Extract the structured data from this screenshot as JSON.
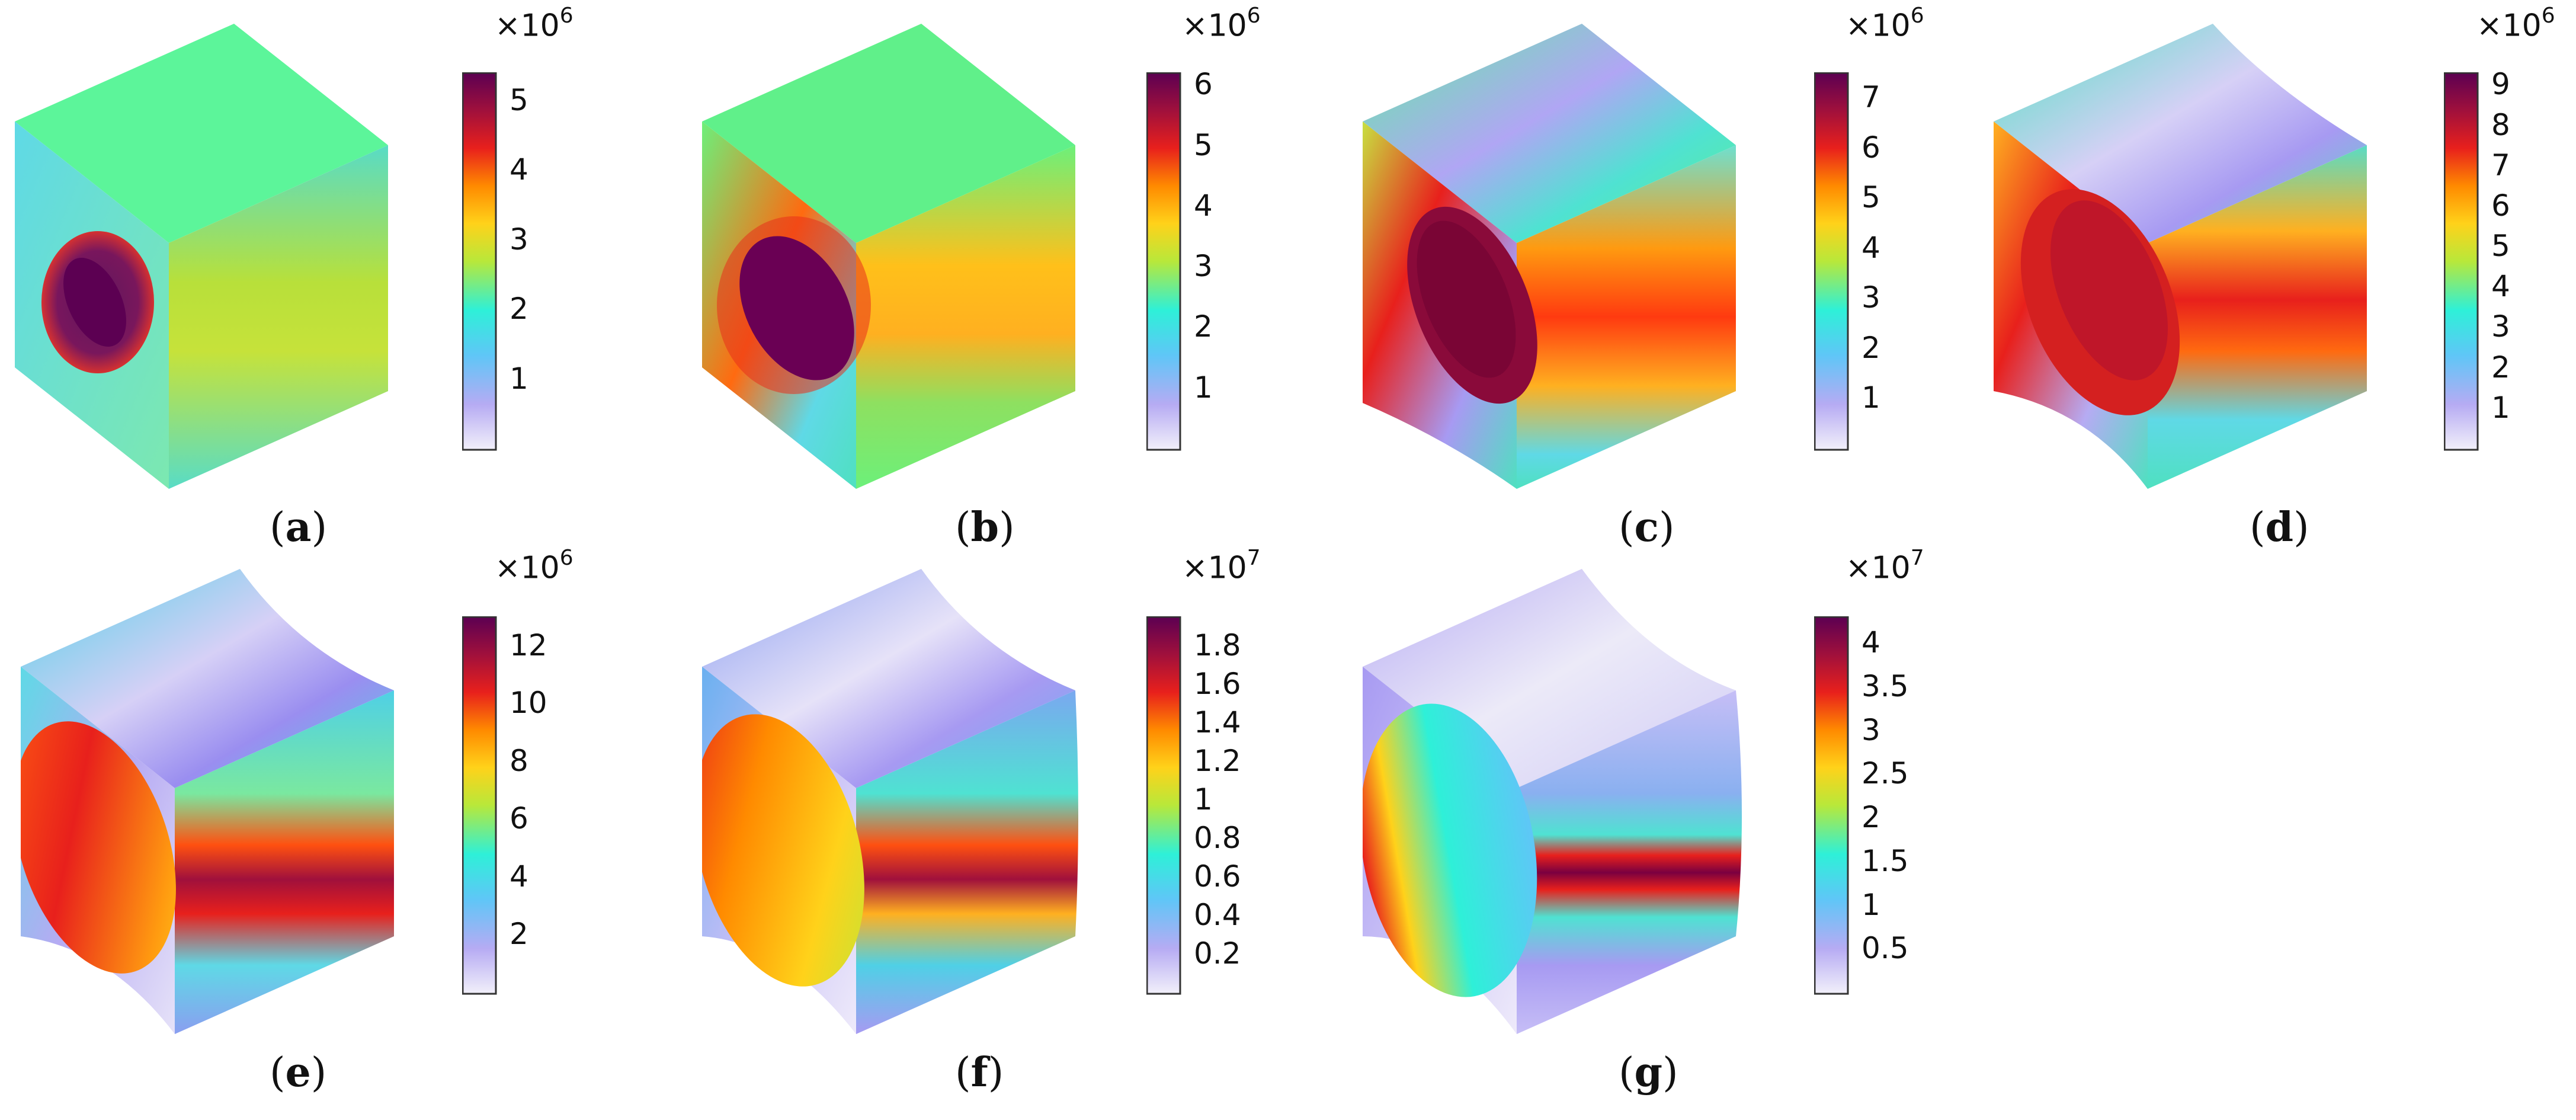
{
  "figure": {
    "colormap": [
      "#ece9f7",
      "#a79af2",
      "#5dd0f5",
      "#2ef0d8",
      "#b8e83a",
      "#ffd21a",
      "#ff8a00",
      "#e8201c",
      "#9e0f3a",
      "#5c0052"
    ],
    "panels": [
      {
        "label": "a",
        "multiplier": "×10",
        "exp": "6",
        "ticks": [
          "5",
          "4",
          "3",
          "2",
          "1"
        ],
        "max": 5.4,
        "min": 0,
        "tickvals": [
          5,
          4,
          3,
          2,
          1
        ]
      },
      {
        "label": "b",
        "multiplier": "×10",
        "exp": "6",
        "ticks": [
          "6",
          "5",
          "4",
          "3",
          "2",
          "1"
        ],
        "max": 6.2,
        "min": 0,
        "tickvals": [
          6,
          5,
          4,
          3,
          2,
          1
        ]
      },
      {
        "label": "c",
        "multiplier": "×10",
        "exp": "6",
        "ticks": [
          "7",
          "6",
          "5",
          "4",
          "3",
          "2",
          "1"
        ],
        "max": 7.5,
        "min": 0,
        "tickvals": [
          7,
          6,
          5,
          4,
          3,
          2,
          1
        ]
      },
      {
        "label": "d",
        "multiplier": "×10",
        "exp": "6",
        "ticks": [
          "9",
          "8",
          "7",
          "6",
          "5",
          "4",
          "3",
          "2",
          "1"
        ],
        "max": 9.3,
        "min": 0,
        "tickvals": [
          9,
          8,
          7,
          6,
          5,
          4,
          3,
          2,
          1
        ]
      },
      {
        "label": "e",
        "multiplier": "×10",
        "exp": "6",
        "ticks": [
          "12",
          "10",
          "8",
          "6",
          "4",
          "2"
        ],
        "max": 13,
        "min": 0,
        "tickvals": [
          12,
          10,
          8,
          6,
          4,
          2
        ]
      },
      {
        "label": "f",
        "multiplier": "×10",
        "exp": "7",
        "ticks": [
          "1.8",
          "1.6",
          "1.4",
          "1.2",
          "1",
          "0.8",
          "0.6",
          "0.4",
          "0.2"
        ],
        "max": 1.95,
        "min": 0,
        "tickvals": [
          1.8,
          1.6,
          1.4,
          1.2,
          1,
          0.8,
          0.6,
          0.4,
          0.2
        ]
      },
      {
        "label": "g",
        "multiplier": "×10",
        "exp": "7",
        "ticks": [
          "4",
          "3.5",
          "3",
          "2.5",
          "2",
          "1.5",
          "1",
          "0.5"
        ],
        "max": 4.3,
        "min": 0,
        "tickvals": [
          4,
          3.5,
          3,
          2.5,
          2,
          1.5,
          1,
          0.5
        ]
      }
    ]
  }
}
